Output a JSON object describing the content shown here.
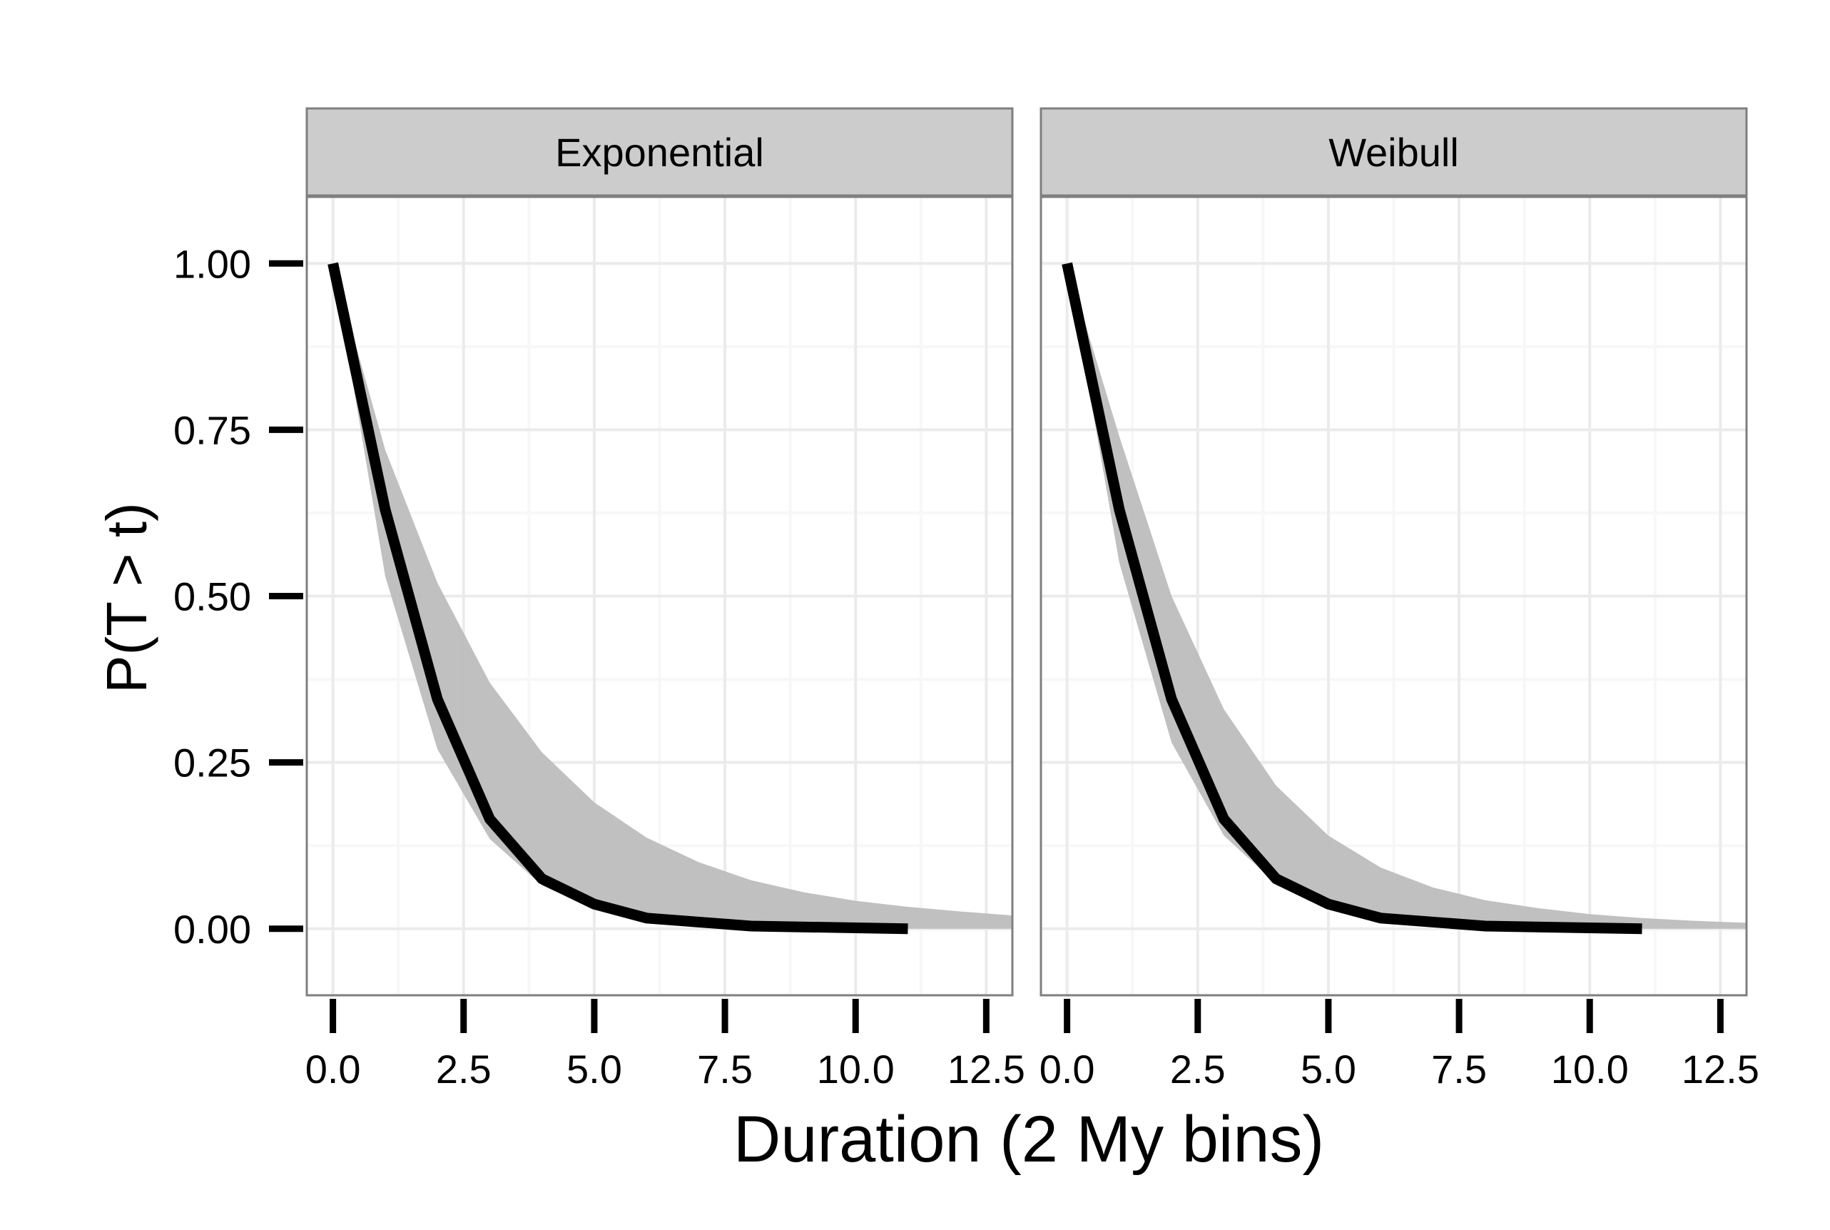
{
  "chart_data": {
    "type": "line",
    "xlabel": "Duration (2 My bins)",
    "ylabel": "P(T > t)",
    "xlim": [
      -0.5,
      13.0
    ],
    "ylim": [
      -0.1,
      1.1
    ],
    "x_ticks": [
      0.0,
      2.5,
      5.0,
      7.5,
      10.0,
      12.5
    ],
    "x_tick_labels": [
      "0.0",
      "2.5",
      "5.0",
      "7.5",
      "10.0",
      "12.5"
    ],
    "y_ticks": [
      0.0,
      0.25,
      0.5,
      0.75,
      1.0
    ],
    "y_tick_labels": [
      "0.00",
      "0.25",
      "0.50",
      "0.75",
      "1.00"
    ],
    "grid": true,
    "colors": {
      "observed_line": "#000000",
      "simulated_band": "#bdbdbd",
      "strip_fill": "#cccccc",
      "panel_border": "#7f7f7f",
      "grid_major": "#ebebeb",
      "grid_minor": "#f7f7f7"
    },
    "panels": [
      {
        "strip_label": "Exponential",
        "series": [
          {
            "x": [
              0,
              1,
              2,
              3,
              4,
              5,
              6,
              8,
              11
            ],
            "y": [
              1.0,
              0.63,
              0.345,
              0.165,
              0.075,
              0.037,
              0.016,
              0.004,
              0.0
            ]
          }
        ],
        "band": {
          "x": [
            0,
            1,
            2,
            3,
            4,
            5,
            6,
            7,
            8,
            9,
            10,
            11,
            12,
            13
          ],
          "lower": [
            1.0,
            0.53,
            0.27,
            0.135,
            0.065,
            0.03,
            0.014,
            0.006,
            0.003,
            0.001,
            0.0,
            0.0,
            0.0,
            0.0
          ],
          "upper": [
            1.0,
            0.72,
            0.52,
            0.37,
            0.265,
            0.19,
            0.137,
            0.1,
            0.073,
            0.055,
            0.042,
            0.033,
            0.026,
            0.02
          ]
        }
      },
      {
        "strip_label": "Weibull",
        "series": [
          {
            "x": [
              0,
              1,
              2,
              3,
              4,
              5,
              6,
              8,
              11
            ],
            "y": [
              1.0,
              0.63,
              0.345,
              0.165,
              0.075,
              0.037,
              0.016,
              0.004,
              0.0
            ]
          }
        ],
        "band": {
          "x": [
            0,
            1,
            2,
            3,
            4,
            5,
            6,
            7,
            8,
            9,
            10,
            11,
            12,
            13
          ],
          "lower": [
            1.0,
            0.55,
            0.28,
            0.14,
            0.068,
            0.032,
            0.015,
            0.007,
            0.003,
            0.001,
            0.0,
            0.0,
            0.0,
            0.0
          ],
          "upper": [
            1.0,
            0.74,
            0.5,
            0.33,
            0.215,
            0.14,
            0.092,
            0.062,
            0.043,
            0.031,
            0.022,
            0.016,
            0.012,
            0.009
          ]
        }
      }
    ]
  }
}
